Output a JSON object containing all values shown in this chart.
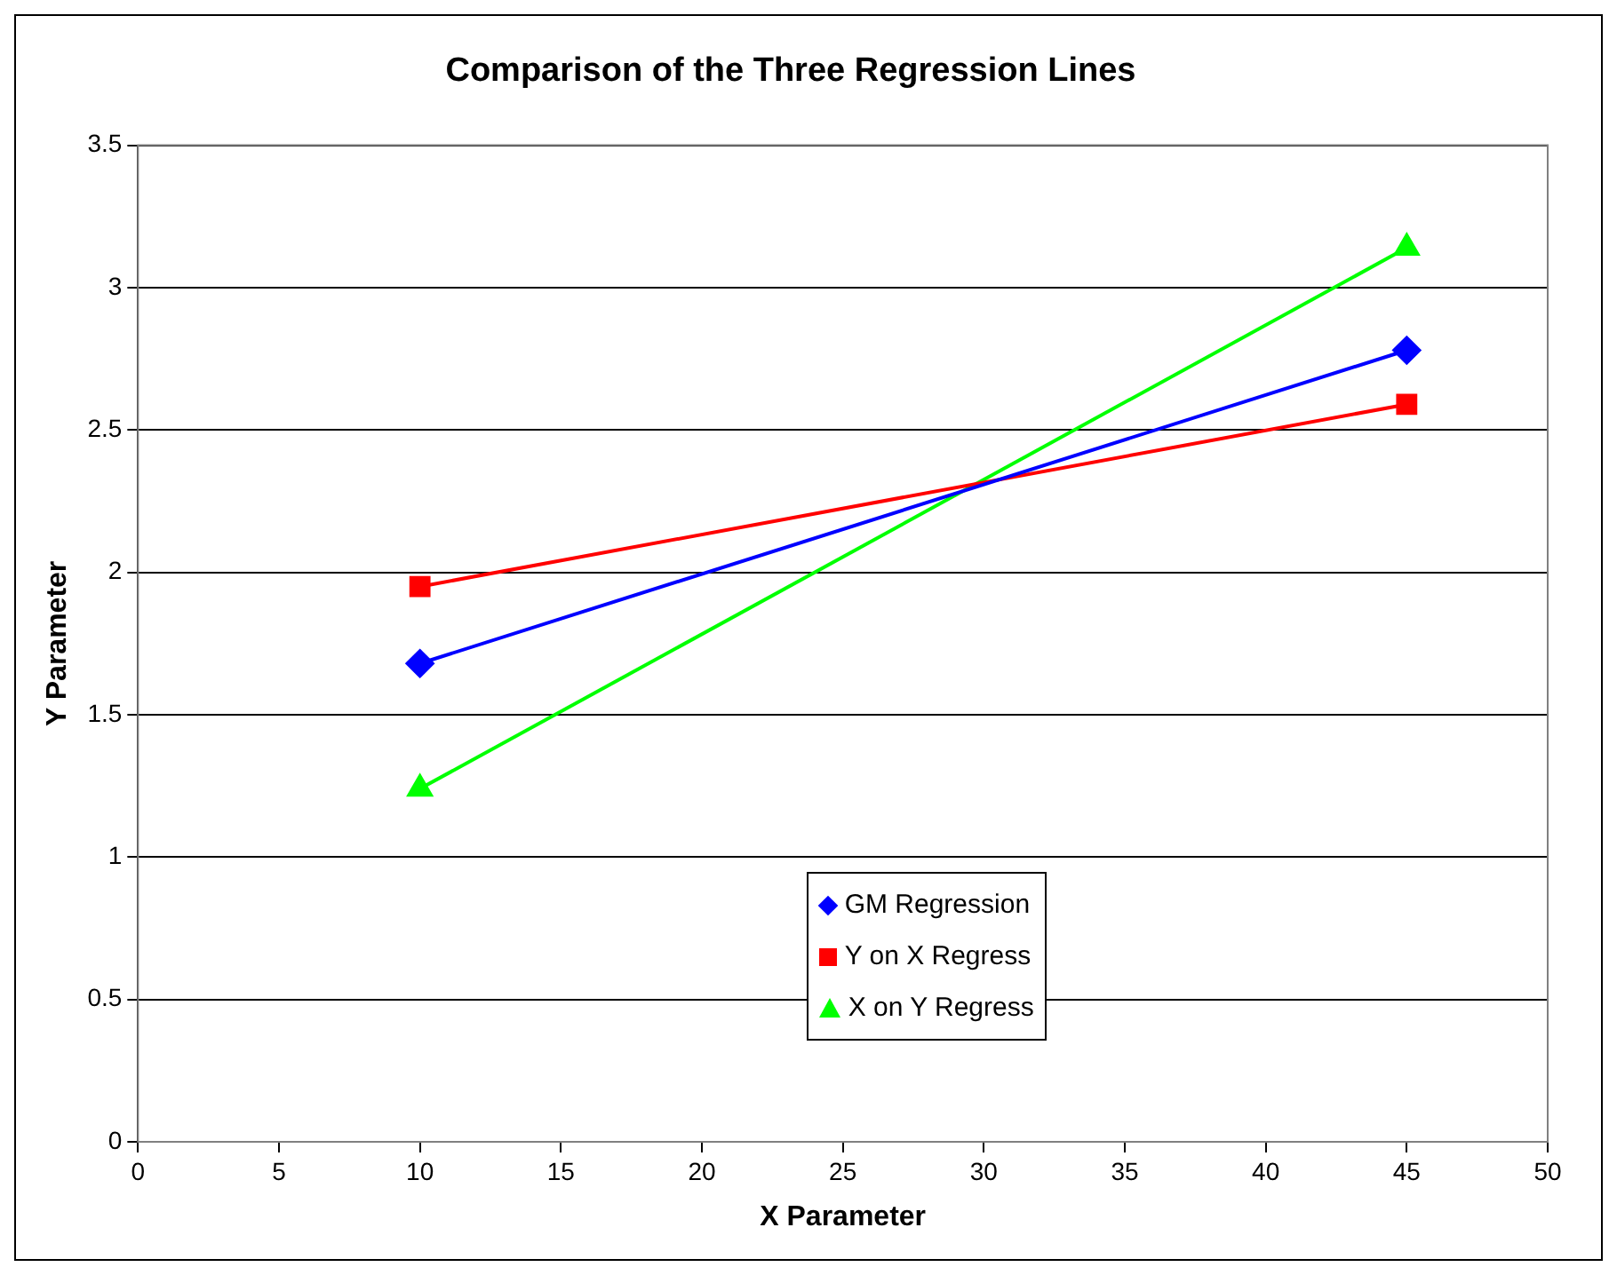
{
  "chart_data": {
    "type": "line",
    "title": "Comparison of the Three Regression Lines",
    "xlabel": "X Parameter",
    "ylabel": "Y Parameter",
    "x": [
      10,
      45
    ],
    "series": [
      {
        "name": "GM Regression",
        "color": "#0000ff",
        "values": [
          1.68,
          2.78
        ],
        "marker": "diamond"
      },
      {
        "name": "Y on X Regress",
        "color": "#ff0000",
        "values": [
          1.95,
          2.59
        ],
        "marker": "square"
      },
      {
        "name": "X on Y Regress",
        "color": "#00ff00",
        "values": [
          1.24,
          3.14
        ],
        "marker": "triangle"
      }
    ],
    "xlim": [
      0,
      50
    ],
    "xticks": [
      0,
      5,
      10,
      15,
      20,
      25,
      30,
      35,
      40,
      45,
      50
    ],
    "ylim": [
      0,
      3.5
    ],
    "yticks": [
      0,
      0.5,
      1,
      1.5,
      2,
      2.5,
      3,
      3.5
    ],
    "grid": "y",
    "legend": "bottom"
  }
}
